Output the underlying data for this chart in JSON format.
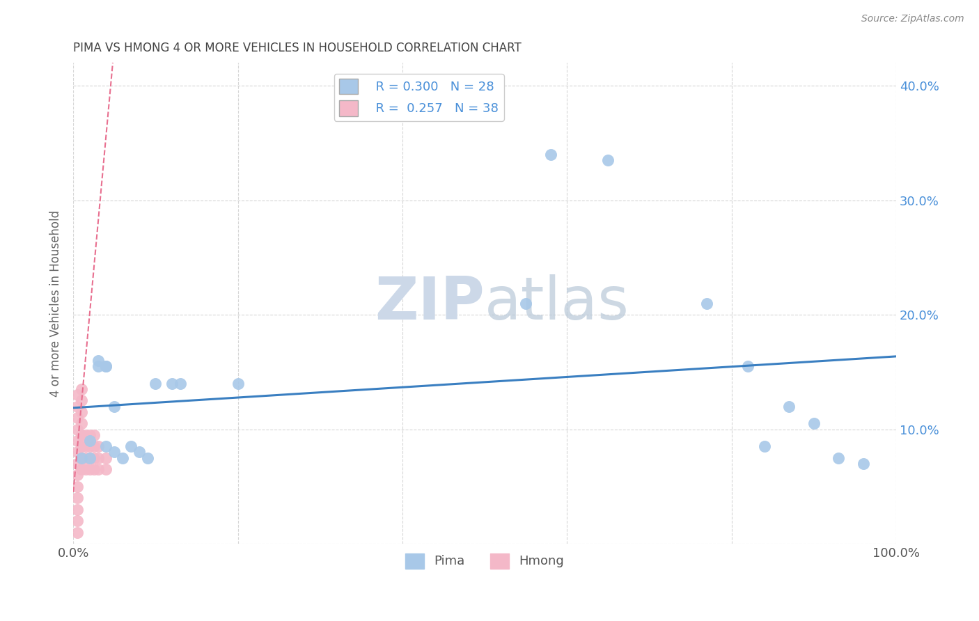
{
  "title": "PIMA VS HMONG 4 OR MORE VEHICLES IN HOUSEHOLD CORRELATION CHART",
  "source_text": "Source: ZipAtlas.com",
  "ylabel": "4 or more Vehicles in Household",
  "xlabel": "",
  "xlim": [
    0,
    1.0
  ],
  "ylim": [
    0,
    0.42
  ],
  "xticks": [
    0.0,
    0.2,
    0.4,
    0.6,
    0.8,
    1.0
  ],
  "xtick_labels": [
    "0.0%",
    "",
    "",
    "",
    "",
    "100.0%"
  ],
  "yticks": [
    0.0,
    0.1,
    0.2,
    0.3,
    0.4
  ],
  "ytick_labels": [
    "",
    "10.0%",
    "20.0%",
    "30.0%",
    "40.0%"
  ],
  "pima_color": "#a8c8e8",
  "hmong_color": "#f4b8c8",
  "pima_line_color": "#3a7fc1",
  "hmong_line_color": "#e87090",
  "background_color": "#ffffff",
  "watermark_color": "#ccd8e8",
  "R_pima": 0.3,
  "N_pima": 28,
  "R_hmong": 0.257,
  "N_hmong": 38,
  "pima_x": [
    0.01,
    0.02,
    0.02,
    0.03,
    0.03,
    0.04,
    0.04,
    0.04,
    0.05,
    0.05,
    0.06,
    0.07,
    0.08,
    0.09,
    0.1,
    0.12,
    0.13,
    0.2,
    0.55,
    0.58,
    0.65,
    0.77,
    0.82,
    0.84,
    0.87,
    0.9,
    0.93,
    0.96
  ],
  "pima_y": [
    0.075,
    0.075,
    0.09,
    0.155,
    0.16,
    0.155,
    0.155,
    0.085,
    0.08,
    0.12,
    0.075,
    0.085,
    0.08,
    0.075,
    0.14,
    0.14,
    0.14,
    0.14,
    0.21,
    0.34,
    0.335,
    0.21,
    0.155,
    0.085,
    0.12,
    0.105,
    0.075,
    0.07
  ],
  "hmong_x": [
    0.005,
    0.005,
    0.005,
    0.005,
    0.005,
    0.005,
    0.005,
    0.005,
    0.005,
    0.005,
    0.005,
    0.005,
    0.005,
    0.01,
    0.01,
    0.01,
    0.01,
    0.01,
    0.01,
    0.01,
    0.01,
    0.015,
    0.015,
    0.015,
    0.015,
    0.02,
    0.02,
    0.02,
    0.02,
    0.025,
    0.025,
    0.025,
    0.025,
    0.03,
    0.03,
    0.03,
    0.04,
    0.04
  ],
  "hmong_y": [
    0.01,
    0.02,
    0.03,
    0.04,
    0.05,
    0.06,
    0.07,
    0.08,
    0.09,
    0.1,
    0.11,
    0.12,
    0.13,
    0.065,
    0.075,
    0.085,
    0.095,
    0.105,
    0.115,
    0.125,
    0.135,
    0.065,
    0.075,
    0.085,
    0.095,
    0.065,
    0.075,
    0.085,
    0.095,
    0.065,
    0.075,
    0.085,
    0.095,
    0.065,
    0.075,
    0.085,
    0.065,
    0.075
  ],
  "hmong_line_x0": 0.0,
  "hmong_line_y0": 0.045,
  "hmong_line_x1": 0.048,
  "hmong_line_y1": 0.42
}
